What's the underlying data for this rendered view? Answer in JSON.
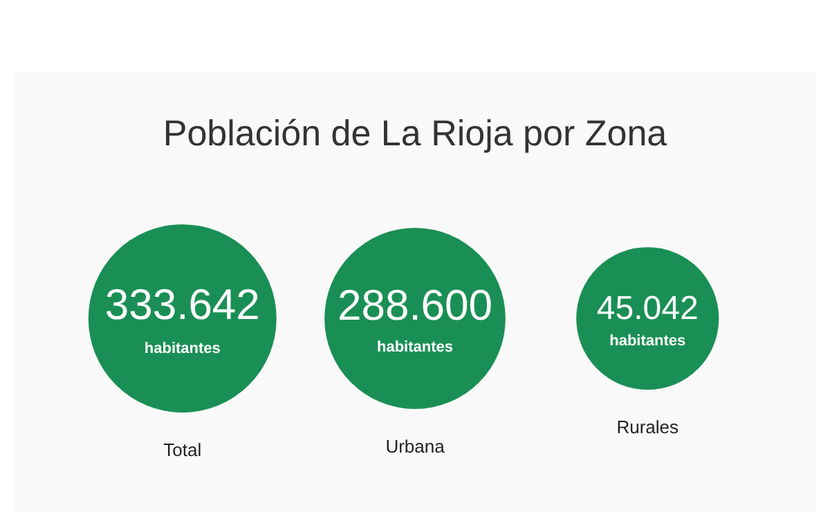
{
  "chart_data": {
    "type": "other",
    "title": "Población de La Rioja por Zona",
    "ylabel": "habitantes",
    "categories": [
      "Total",
      "Urbana",
      "Rurales"
    ],
    "values": [
      333642,
      288600,
      45042
    ],
    "value_labels": [
      "333.642",
      "288.600",
      "45.042"
    ],
    "color": "#1a8f55"
  }
}
